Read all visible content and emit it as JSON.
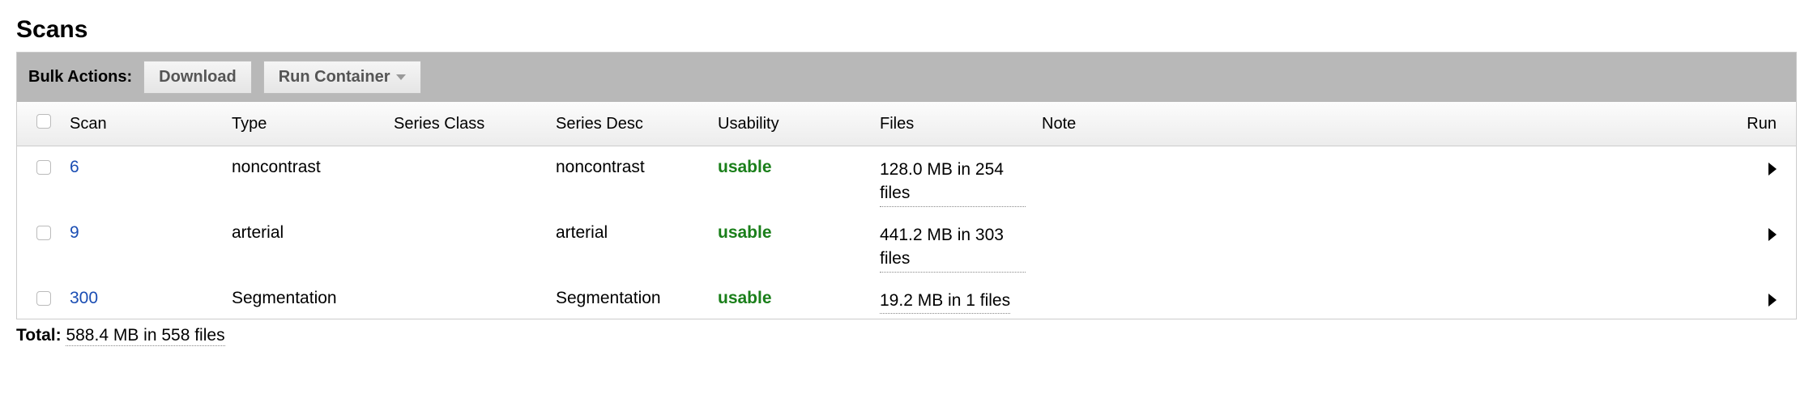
{
  "title": "Scans",
  "bulk": {
    "label": "Bulk Actions:",
    "download": "Download",
    "run_container": "Run Container"
  },
  "columns": {
    "scan": "Scan",
    "type": "Type",
    "series_class": "Series Class",
    "series_desc": "Series Desc",
    "usability": "Usability",
    "files": "Files",
    "note": "Note",
    "run": "Run"
  },
  "rows": [
    {
      "scan": "6",
      "type": "noncontrast",
      "series_class": "",
      "series_desc": "noncontrast",
      "usability": "usable",
      "files": "128.0 MB in 254 files",
      "note": ""
    },
    {
      "scan": "9",
      "type": "arterial",
      "series_class": "",
      "series_desc": "arterial",
      "usability": "usable",
      "files": "441.2 MB in 303 files",
      "note": ""
    },
    {
      "scan": "300",
      "type": "Segmentation",
      "series_class": "",
      "series_desc": "Segmentation",
      "usability": "usable",
      "files": "19.2 MB in 1 files",
      "note": ""
    }
  ],
  "total": {
    "label": "Total:",
    "value": "588.4 MB in 558 files"
  },
  "colors": {
    "link": "#1a4db3",
    "usable": "#1a7f1a",
    "bulk_bar_bg": "#b8b8b8",
    "border": "#cccccc"
  }
}
